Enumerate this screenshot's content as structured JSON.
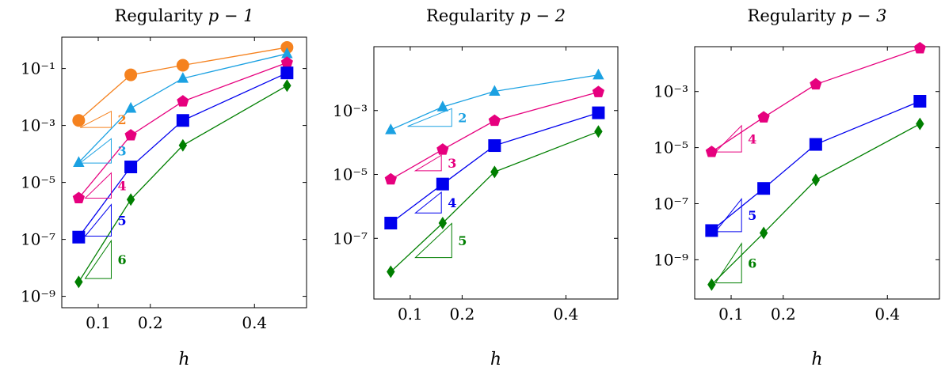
{
  "chart_data": [
    {
      "type": "line",
      "title": "Regularity p − 1",
      "title_text": "Regularity ",
      "title_math": "p − 1",
      "xlabel": "h",
      "ylabel": "",
      "xscale": "linear",
      "yscale": "log",
      "xlim": [
        0.03,
        0.5
      ],
      "ylim_exp": [
        -9.4,
        0.1
      ],
      "x_ticks": [
        0.1,
        0.2,
        0.4
      ],
      "x_tick_labels": [
        "0.1",
        "0.2",
        "0.4"
      ],
      "y_tick_exps": [
        -9,
        -7,
        -5,
        -3,
        -1
      ],
      "y_tick_labels": [
        "10⁻⁹",
        "10⁻⁷",
        "10⁻⁵",
        "10⁻³",
        "10⁻¹"
      ],
      "x": [
        0.0625,
        0.1625,
        0.2625,
        0.4625
      ],
      "series": [
        {
          "degree": 2,
          "color": "#f5821f",
          "marker": "circle",
          "y": [
            0.0015,
            0.06,
            0.13,
            0.55
          ]
        },
        {
          "degree": 3,
          "color": "#1ba1e2",
          "marker": "triangle",
          "y": [
            5e-05,
            0.004,
            0.045,
            0.33
          ]
        },
        {
          "degree": 4,
          "color": "#e6007e",
          "marker": "pentagon",
          "y": [
            2.8e-06,
            0.00045,
            0.007,
            0.16
          ]
        },
        {
          "degree": 5,
          "color": "#0000ee",
          "marker": "square",
          "y": [
            1.2e-07,
            3.5e-05,
            0.0015,
            0.07
          ]
        },
        {
          "degree": 6,
          "color": "#007f00",
          "marker": "diamond",
          "y": [
            3.2e-09,
            2.5e-06,
            0.0002,
            0.025
          ]
        }
      ],
      "slopes": [
        {
          "label": "2",
          "color": "#f5821f",
          "x1": 0.065,
          "x2": 0.125,
          "y_base": 0.00085
        },
        {
          "label": "3",
          "color": "#1ba1e2",
          "x1": 0.065,
          "x2": 0.125,
          "y_base": 4.8e-05
        },
        {
          "label": "4",
          "color": "#e6007e",
          "x1": 0.075,
          "x2": 0.125,
          "y_base": 2.8e-06
        },
        {
          "label": "5",
          "color": "#0000ee",
          "x1": 0.075,
          "x2": 0.125,
          "y_base": 1.3e-07
        },
        {
          "label": "6",
          "color": "#007f00",
          "x1": 0.075,
          "x2": 0.125,
          "y_base": 4.2e-09
        }
      ]
    },
    {
      "type": "line",
      "title": "Regularity p − 2",
      "title_text": "Regularity ",
      "title_math": "p − 2",
      "xlabel": "h",
      "ylabel": "",
      "xscale": "linear",
      "yscale": "log",
      "xlim": [
        0.03,
        0.5
      ],
      "ylim_exp": [
        -8.9,
        -1.0
      ],
      "x_ticks": [
        0.1,
        0.2,
        0.4
      ],
      "x_tick_labels": [
        "0.1",
        "0.2",
        "0.4"
      ],
      "y_tick_exps": [
        -7,
        -5,
        -3
      ],
      "y_tick_labels": [
        "10⁻⁷",
        "10⁻⁵",
        "10⁻³"
      ],
      "x": [
        0.0625,
        0.1625,
        0.2625,
        0.4625
      ],
      "series": [
        {
          "degree": 3,
          "color": "#1ba1e2",
          "marker": "triangle",
          "y": [
            0.00025,
            0.0013,
            0.004,
            0.013
          ]
        },
        {
          "degree": 4,
          "color": "#e6007e",
          "marker": "pentagon",
          "y": [
            7e-06,
            6e-05,
            0.00048,
            0.0038
          ]
        },
        {
          "degree": 5,
          "color": "#0000ee",
          "marker": "square",
          "y": [
            3e-07,
            5e-06,
            8e-05,
            0.00085
          ]
        },
        {
          "degree": 6,
          "color": "#007f00",
          "marker": "diamond",
          "y": [
            9e-09,
            3e-07,
            1.2e-05,
            0.00022
          ]
        }
      ],
      "slopes": [
        {
          "label": "2",
          "color": "#1ba1e2",
          "x1": 0.095,
          "x2": 0.18,
          "y_base": 0.00032
        },
        {
          "label": "3",
          "color": "#e6007e",
          "x1": 0.11,
          "x2": 0.16,
          "y_base": 1.3e-05
        },
        {
          "label": "4",
          "color": "#0000ee",
          "x1": 0.11,
          "x2": 0.16,
          "y_base": 6.2e-07
        },
        {
          "label": "5",
          "color": "#007f00",
          "x1": 0.11,
          "x2": 0.18,
          "y_base": 2.5e-08
        }
      ]
    },
    {
      "type": "line",
      "title": "Regularity p − 3",
      "title_text": "Regularity ",
      "title_math": "p − 3",
      "xlabel": "h",
      "ylabel": "",
      "xscale": "linear",
      "yscale": "log",
      "xlim": [
        0.03,
        0.5
      ],
      "ylim_exp": [
        -10.4,
        -1.4
      ],
      "x_ticks": [
        0.1,
        0.2,
        0.4
      ],
      "x_tick_labels": [
        "0.1",
        "0.2",
        "0.4"
      ],
      "y_tick_exps": [
        -9,
        -7,
        -5,
        -3
      ],
      "y_tick_labels": [
        "10⁻⁹",
        "10⁻⁷",
        "10⁻⁵",
        "10⁻³"
      ],
      "x": [
        0.0625,
        0.1625,
        0.2625,
        0.4625
      ],
      "series": [
        {
          "degree": 4,
          "color": "#e6007e",
          "marker": "pentagon",
          "y": [
            7e-06,
            0.00012,
            0.0018,
            0.035
          ]
        },
        {
          "degree": 5,
          "color": "#0000ee",
          "marker": "square",
          "y": [
            1.1e-08,
            3.5e-07,
            1.3e-05,
            0.00045
          ]
        },
        {
          "degree": 6,
          "color": "#007f00",
          "marker": "diamond",
          "y": [
            1.3e-10,
            9e-09,
            7e-07,
            7e-05
          ]
        }
      ],
      "slopes": [
        {
          "label": "4",
          "color": "#e6007e",
          "x1": 0.07,
          "x2": 0.12,
          "y_base": 7e-06
        },
        {
          "label": "5",
          "color": "#0000ee",
          "x1": 0.07,
          "x2": 0.12,
          "y_base": 1e-08
        },
        {
          "label": "6",
          "color": "#007f00",
          "x1": 0.07,
          "x2": 0.12,
          "y_base": 1.5e-10
        }
      ]
    }
  ]
}
